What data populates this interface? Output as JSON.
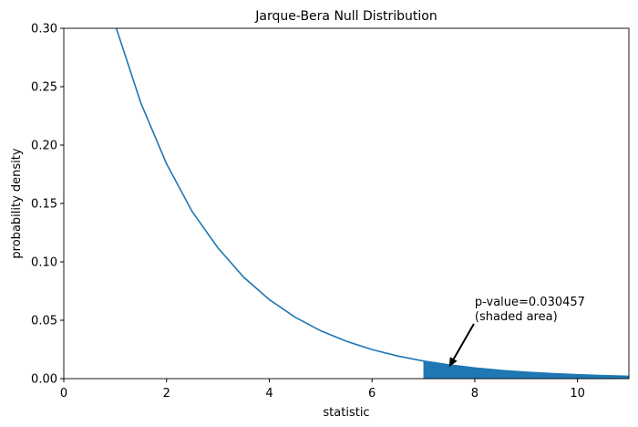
{
  "chart_data": {
    "type": "line",
    "title": "Jarque-Bera Null Distribution",
    "xlabel": "statistic",
    "ylabel": "probability density",
    "line": {
      "color": "#1f77b4",
      "x": [
        1,
        1.5,
        2,
        2.5,
        3,
        3.5,
        4,
        4.5,
        5,
        5.5,
        6,
        6.5,
        7,
        7.5,
        8,
        8.5,
        9,
        9.5,
        10,
        10.5,
        11
      ],
      "values": [
        0.303,
        0.236,
        0.184,
        0.143,
        0.112,
        0.0869,
        0.0677,
        0.0527,
        0.041,
        0.032,
        0.0249,
        0.0194,
        0.0151,
        0.0118,
        0.00916,
        0.00713,
        0.00555,
        0.00433,
        0.00337,
        0.00262,
        0.00204
      ]
    },
    "shaded": {
      "color": "#1f77b4",
      "x": [
        7,
        7.5,
        8,
        8.5,
        9,
        9.5,
        10,
        10.5,
        11
      ],
      "values": [
        0.0151,
        0.0118,
        0.00916,
        0.00713,
        0.00555,
        0.00433,
        0.00337,
        0.00262,
        0.00204
      ]
    },
    "annotation": {
      "lines": [
        "p-value=0.030457",
        "(shaded area)"
      ],
      "xy": [
        7.5,
        0.01
      ],
      "xytext": [
        8,
        0.05
      ]
    },
    "xlim": [
      0,
      11
    ],
    "ylim": [
      0,
      0.3
    ],
    "xticks": [
      0,
      2,
      4,
      6,
      8,
      10
    ],
    "yticks": [
      {
        "value": 0,
        "label": "0.00"
      },
      {
        "value": 0.05,
        "label": "0.05"
      },
      {
        "value": 0.1,
        "label": "0.10"
      },
      {
        "value": 0.15,
        "label": "0.15"
      },
      {
        "value": 0.2,
        "label": "0.20"
      },
      {
        "value": 0.25,
        "label": "0.25"
      },
      {
        "value": 0.3,
        "label": "0.30"
      }
    ]
  }
}
